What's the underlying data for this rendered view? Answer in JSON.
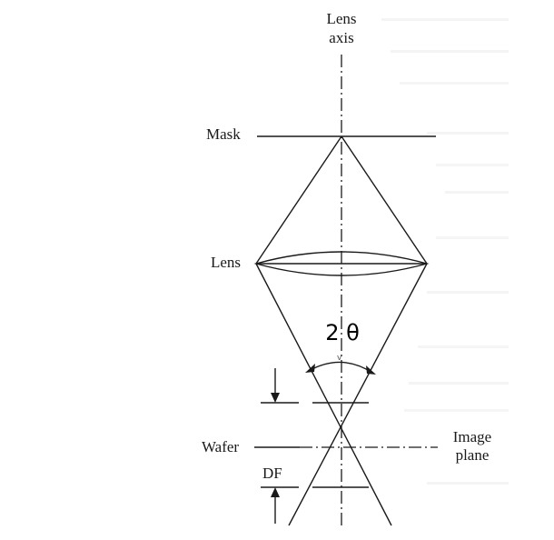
{
  "labels": {
    "lens_axis_line1": "Lens",
    "lens_axis_line2": "axis",
    "mask": "Mask",
    "lens": "Lens",
    "angle": "2 θ",
    "wafer": "Wafer",
    "image_plane_line1": "Image",
    "image_plane_line2": "plane",
    "depth_of_focus": "DF"
  }
}
